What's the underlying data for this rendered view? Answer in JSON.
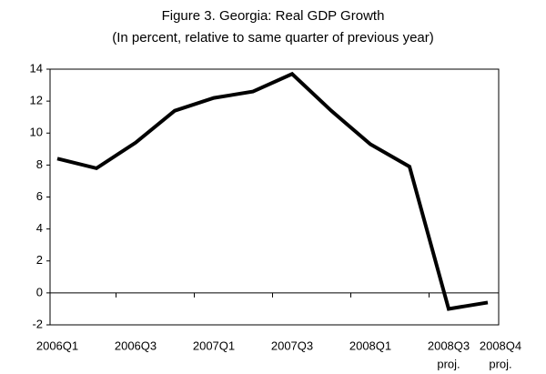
{
  "chart_data": {
    "type": "line",
    "title": "Figure 3. Georgia: Real GDP Growth",
    "subtitle": "(In percent, relative to same quarter of previous year)",
    "categories": [
      "2006Q1",
      null,
      "2006Q3",
      null,
      "2007Q1",
      null,
      "2007Q3",
      null,
      "2008Q1",
      null,
      "2008Q3",
      "2008Q4"
    ],
    "category_notes": [
      null,
      null,
      null,
      null,
      null,
      null,
      null,
      null,
      null,
      null,
      "proj.",
      "proj."
    ],
    "series": [
      {
        "name": "Real GDP growth",
        "color": "#000000",
        "values": [
          8.4,
          7.8,
          9.4,
          11.4,
          12.2,
          12.6,
          13.7,
          11.4,
          9.3,
          7.9,
          -1.0,
          -0.6
        ]
      }
    ],
    "ylim": [
      -2,
      14
    ],
    "yticks": [
      -2,
      0,
      2,
      4,
      6,
      8,
      10,
      12,
      14
    ],
    "grid": false
  }
}
